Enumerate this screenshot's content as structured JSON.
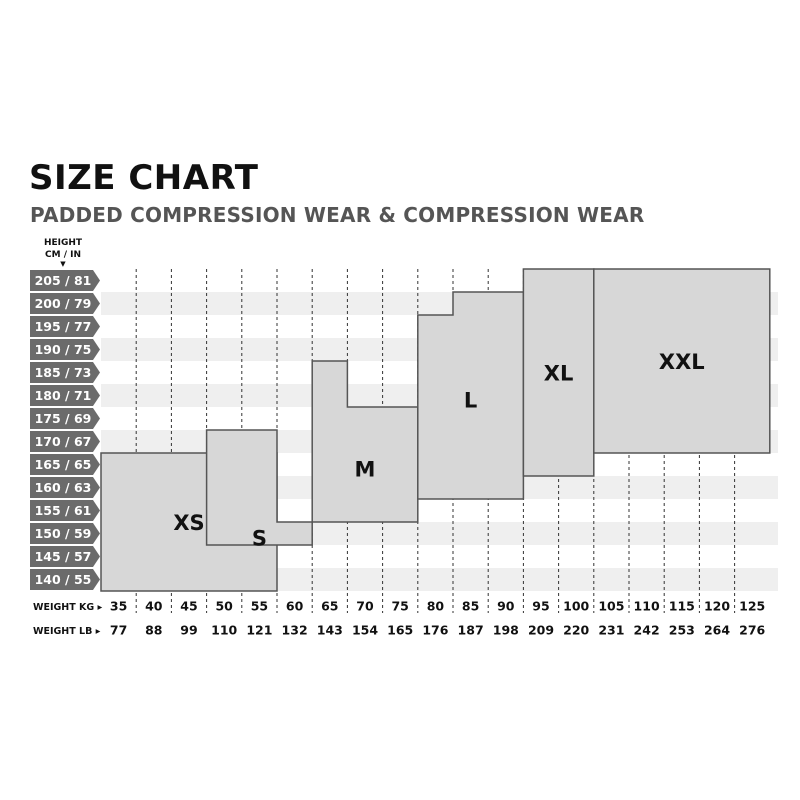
{
  "header": {
    "title": "SIZE CHART",
    "subtitle": "PADDED COMPRESSION WEAR & COMPRESSION WEAR",
    "height_label_line1": "HEIGHT",
    "height_label_line2": "CM / IN",
    "weight_kg_label": "WEIGHT KG",
    "weight_lb_label": "WEIGHT LB"
  },
  "colors": {
    "size_box_fill": "#d7d7d7",
    "size_box_stroke": "#555555",
    "height_axis_fill": "#6b6b6b",
    "row_stripe": "#efefef",
    "grid_dash": "#333333"
  },
  "chart_data": {
    "type": "table",
    "title": "SIZE CHART",
    "subtitle": "PADDED COMPRESSION WEAR & COMPRESSION WEAR",
    "heights": [
      "205 / 81",
      "200 / 79",
      "195 / 77",
      "190 / 75",
      "185 / 73",
      "180 / 71",
      "175 / 69",
      "170 / 67",
      "165 / 65",
      "160 / 63",
      "155 / 61",
      "150 / 59",
      "145 / 57",
      "140 / 55"
    ],
    "weights_kg": [
      "35",
      "40",
      "45",
      "50",
      "55",
      "60",
      "65",
      "70",
      "75",
      "80",
      "85",
      "90",
      "95",
      "100",
      "105",
      "110",
      "115",
      "120",
      "125"
    ],
    "weights_lb": [
      "77",
      "88",
      "99",
      "110",
      "121",
      "132",
      "143",
      "154",
      "165",
      "176",
      "187",
      "198",
      "209",
      "220",
      "231",
      "242",
      "253",
      "264",
      "276"
    ],
    "sizes": [
      {
        "label": "XS",
        "weight_kg": [
          32.5,
          57.5
        ],
        "height_cm": [
          137.5,
          167.5
        ],
        "step": null
      },
      {
        "label": "S",
        "weight_kg": [
          47.5,
          62.5
        ],
        "height_cm": [
          147.5,
          172.5
        ],
        "step": [
          57.5,
          152.5
        ]
      },
      {
        "label": "M",
        "weight_kg": [
          62.5,
          77.5
        ],
        "height_cm": [
          152.5,
          187.5
        ],
        "step": [
          67.5,
          177.5
        ]
      },
      {
        "label": "L",
        "weight_kg": [
          77.5,
          92.5
        ],
        "height_cm": [
          157.5,
          197.5
        ],
        "step": [
          82.5,
          202.5
        ]
      },
      {
        "label": "XL",
        "weight_kg": [
          92.5,
          102.5
        ],
        "height_cm": [
          162.5,
          207.5
        ],
        "step": null
      },
      {
        "label": "XXL",
        "weight_kg": [
          102.5,
          127.5
        ],
        "height_cm": [
          167.5,
          207.5
        ],
        "step": null
      }
    ]
  }
}
